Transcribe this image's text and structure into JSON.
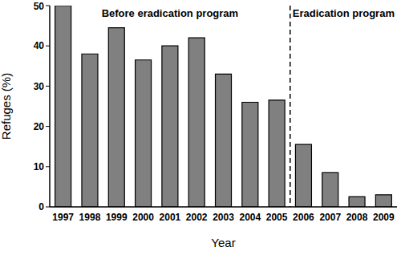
{
  "chart_data": {
    "type": "bar",
    "x_label": "Year",
    "y_label": "Refuges (%)",
    "categories": [
      "1997",
      "1998",
      "1999",
      "2000",
      "2001",
      "2002",
      "2003",
      "2004",
      "2005",
      "2006",
      "2007",
      "2008",
      "2009"
    ],
    "values": [
      50,
      38,
      44.5,
      36.5,
      40,
      42,
      33,
      26,
      26.5,
      15.5,
      8.5,
      2.5,
      3
    ],
    "color": "#808080",
    "ylim": [
      0,
      50
    ],
    "yticks": [
      0,
      10,
      20,
      30,
      40,
      50
    ],
    "grid": false,
    "annotations": [
      {
        "text": "Before eradication program",
        "start": "1997",
        "end": "2005"
      },
      {
        "text": "Eradication program",
        "start": "2006",
        "end": "2009"
      }
    ]
  }
}
